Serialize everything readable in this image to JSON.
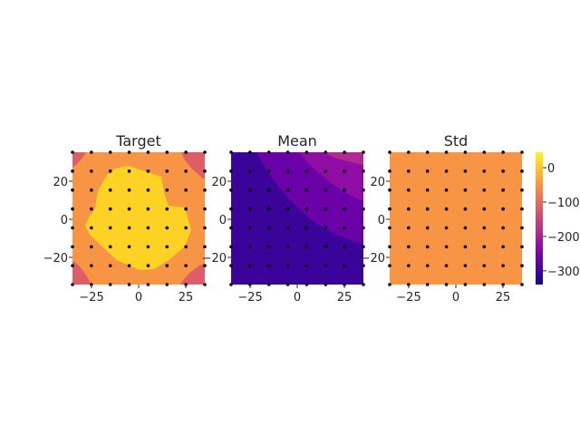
{
  "chart_data": [
    {
      "type": "heatmap",
      "title": "Target",
      "xlabel": "",
      "ylabel": "",
      "xlim": [
        -35,
        35
      ],
      "ylim": [
        -35,
        35
      ],
      "xticks": [
        "−25",
        "0",
        "25"
      ],
      "yticks": [
        "20",
        "0",
        "−20"
      ],
      "grid": false,
      "levels": [
        {
          "value": -110,
          "color": "#dd5e66"
        },
        {
          "value": -40,
          "color": "#f79544"
        },
        {
          "value": 20,
          "color": "#fcd225"
        }
      ],
      "points": {
        "x": [
          -35,
          -25,
          -15,
          -5,
          5,
          15,
          25,
          35
        ],
        "y": [
          35,
          25,
          15,
          5,
          -5,
          -15,
          -25,
          -35
        ],
        "marker": "black dot"
      }
    },
    {
      "type": "heatmap",
      "title": "Mean",
      "xlabel": "",
      "ylabel": "",
      "xlim": [
        -35,
        35
      ],
      "ylim": [
        -35,
        35
      ],
      "xticks": [
        "−25",
        "0",
        "25"
      ],
      "yticks": [
        "20",
        "0",
        "−20"
      ],
      "grid": false,
      "levels": [
        {
          "value": -310,
          "color": "#3a049a"
        },
        {
          "value": -250,
          "color": "#6a00a8"
        },
        {
          "value": -190,
          "color": "#8f0da4"
        },
        {
          "value": -130,
          "color": "#b12a90"
        }
      ],
      "points": {
        "x": [
          -35,
          -25,
          -15,
          -5,
          5,
          15,
          25,
          35
        ],
        "y": [
          35,
          25,
          15,
          5,
          -5,
          -15,
          -25,
          -35
        ],
        "marker": "black dot"
      }
    },
    {
      "type": "heatmap",
      "title": "Std",
      "xlabel": "",
      "ylabel": "",
      "xlim": [
        -35,
        35
      ],
      "ylim": [
        -35,
        35
      ],
      "xticks": [
        "−25",
        "0",
        "25"
      ],
      "yticks": [
        "20",
        "0",
        "−20"
      ],
      "grid": false,
      "levels": [
        {
          "value": -40,
          "color": "#f79544"
        }
      ],
      "points": {
        "x": [
          -35,
          -25,
          -15,
          -5,
          5,
          15,
          25,
          35
        ],
        "y": [
          35,
          25,
          15,
          5,
          -5,
          -15,
          -25,
          -35
        ],
        "marker": "black dot"
      }
    }
  ],
  "colorbar": {
    "colormap": "plasma",
    "range": [
      -340,
      45
    ],
    "ticks": [
      {
        "value": 0,
        "label": "0"
      },
      {
        "value": -100,
        "label": "−100"
      },
      {
        "value": -200,
        "label": "−200"
      },
      {
        "value": -300,
        "label": "−300"
      }
    ]
  }
}
